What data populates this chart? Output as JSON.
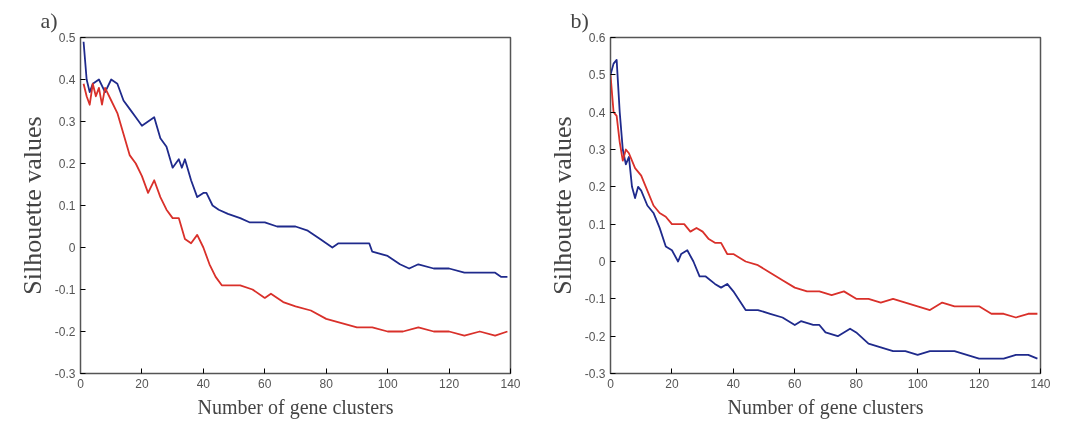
{
  "chart_data": [
    {
      "type": "line",
      "title": "a)",
      "xlabel": "Number of gene clusters",
      "ylabel": "Silhouette values",
      "xlim": [
        0,
        140
      ],
      "ylim": [
        -0.3,
        0.5
      ],
      "xticks": [
        0,
        20,
        40,
        60,
        80,
        100,
        120,
        140
      ],
      "yticks": [
        -0.3,
        -0.2,
        -0.1,
        0,
        0.1,
        0.2,
        0.3,
        0.4,
        0.5
      ],
      "grid": false,
      "series": [
        {
          "color": "#1f2a8c",
          "x": [
            1,
            2,
            3,
            4,
            6,
            8,
            10,
            12,
            14,
            16,
            18,
            20,
            22,
            24,
            26,
            28,
            30,
            32,
            33,
            34,
            36,
            38,
            40,
            41,
            43,
            45,
            48,
            52,
            55,
            58,
            60,
            64,
            66,
            70,
            74,
            78,
            80,
            82,
            84,
            86,
            90,
            94,
            95,
            100,
            104,
            107,
            110,
            115,
            120,
            125,
            130,
            135,
            137,
            139
          ],
          "values": [
            0.49,
            0.4,
            0.37,
            0.39,
            0.4,
            0.37,
            0.4,
            0.39,
            0.35,
            0.33,
            0.31,
            0.29,
            0.3,
            0.31,
            0.26,
            0.24,
            0.19,
            0.21,
            0.19,
            0.21,
            0.16,
            0.12,
            0.13,
            0.13,
            0.1,
            0.09,
            0.08,
            0.07,
            0.06,
            0.06,
            0.06,
            0.05,
            0.05,
            0.05,
            0.04,
            0.02,
            0.01,
            0.0,
            0.01,
            0.01,
            0.01,
            0.01,
            -0.01,
            -0.02,
            -0.04,
            -0.05,
            -0.04,
            -0.05,
            -0.05,
            -0.06,
            -0.06,
            -0.06,
            -0.07,
            -0.07
          ]
        },
        {
          "color": "#d9302a",
          "x": [
            1,
            2,
            3,
            4,
            5,
            6,
            7,
            8,
            10,
            12,
            14,
            16,
            18,
            20,
            22,
            24,
            26,
            28,
            30,
            32,
            34,
            36,
            38,
            40,
            42,
            44,
            46,
            50,
            52,
            56,
            60,
            62,
            66,
            70,
            75,
            80,
            85,
            90,
            95,
            100,
            105,
            110,
            115,
            120,
            125,
            130,
            135,
            139
          ],
          "values": [
            0.39,
            0.36,
            0.34,
            0.39,
            0.36,
            0.38,
            0.34,
            0.38,
            0.35,
            0.32,
            0.27,
            0.22,
            0.2,
            0.17,
            0.13,
            0.16,
            0.12,
            0.09,
            0.07,
            0.07,
            0.02,
            0.01,
            0.03,
            0.0,
            -0.04,
            -0.07,
            -0.09,
            -0.09,
            -0.09,
            -0.1,
            -0.12,
            -0.11,
            -0.13,
            -0.14,
            -0.15,
            -0.17,
            -0.18,
            -0.19,
            -0.19,
            -0.2,
            -0.2,
            -0.19,
            -0.2,
            -0.2,
            -0.21,
            -0.2,
            -0.21,
            -0.2
          ]
        }
      ]
    },
    {
      "type": "line",
      "title": "b)",
      "xlabel": "Number of gene clusters",
      "ylabel": "Silhouette values",
      "xlim": [
        0,
        140
      ],
      "ylim": [
        -0.3,
        0.6
      ],
      "xticks": [
        0,
        20,
        40,
        60,
        80,
        100,
        120,
        140
      ],
      "yticks": [
        -0.3,
        -0.2,
        -0.1,
        0,
        0.1,
        0.2,
        0.3,
        0.4,
        0.5,
        0.6
      ],
      "grid": false,
      "series": [
        {
          "color": "#1f2a8c",
          "x": [
            0,
            1,
            2,
            3,
            4,
            5,
            6,
            7,
            8,
            9,
            10,
            12,
            14,
            16,
            18,
            20,
            22,
            23,
            25,
            27,
            29,
            31,
            34,
            36,
            38,
            40,
            44,
            48,
            52,
            56,
            60,
            62,
            66,
            68,
            70,
            74,
            78,
            80,
            84,
            88,
            92,
            96,
            100,
            104,
            108,
            112,
            116,
            120,
            124,
            128,
            132,
            136,
            139
          ],
          "values": [
            0.5,
            0.53,
            0.54,
            0.4,
            0.3,
            0.26,
            0.28,
            0.2,
            0.17,
            0.2,
            0.19,
            0.15,
            0.13,
            0.09,
            0.04,
            0.03,
            0.0,
            0.02,
            0.03,
            0.0,
            -0.04,
            -0.04,
            -0.06,
            -0.07,
            -0.06,
            -0.08,
            -0.13,
            -0.13,
            -0.14,
            -0.15,
            -0.17,
            -0.16,
            -0.17,
            -0.17,
            -0.19,
            -0.2,
            -0.18,
            -0.19,
            -0.22,
            -0.23,
            -0.24,
            -0.24,
            -0.25,
            -0.24,
            -0.24,
            -0.24,
            -0.25,
            -0.26,
            -0.26,
            -0.26,
            -0.25,
            -0.25,
            -0.26
          ]
        },
        {
          "color": "#d9302a",
          "x": [
            0,
            1,
            2,
            3,
            4,
            5,
            6,
            8,
            10,
            12,
            14,
            16,
            18,
            20,
            24,
            26,
            28,
            30,
            32,
            34,
            36,
            38,
            40,
            44,
            48,
            52,
            56,
            60,
            64,
            68,
            72,
            76,
            80,
            84,
            88,
            92,
            96,
            100,
            104,
            108,
            112,
            116,
            120,
            124,
            128,
            132,
            136,
            139
          ],
          "values": [
            0.5,
            0.4,
            0.39,
            0.32,
            0.27,
            0.3,
            0.29,
            0.25,
            0.23,
            0.19,
            0.15,
            0.13,
            0.12,
            0.1,
            0.1,
            0.08,
            0.09,
            0.08,
            0.06,
            0.05,
            0.05,
            0.02,
            0.02,
            0.0,
            -0.01,
            -0.03,
            -0.05,
            -0.07,
            -0.08,
            -0.08,
            -0.09,
            -0.08,
            -0.1,
            -0.1,
            -0.11,
            -0.1,
            -0.11,
            -0.12,
            -0.13,
            -0.11,
            -0.12,
            -0.12,
            -0.12,
            -0.14,
            -0.14,
            -0.15,
            -0.14,
            -0.14
          ]
        }
      ]
    }
  ]
}
